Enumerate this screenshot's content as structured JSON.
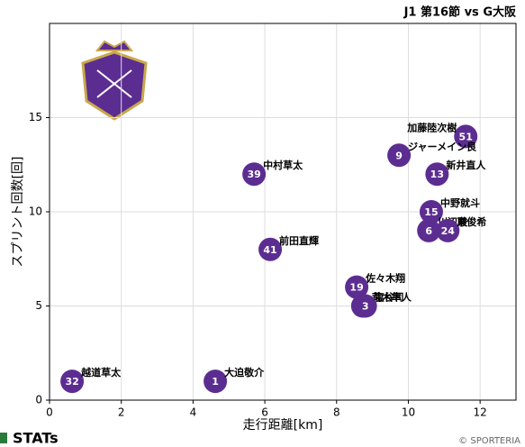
{
  "chart_data": {
    "type": "scatter",
    "title": "J1 第16節 vs G大阪",
    "xlabel": "走行距離[km]",
    "ylabel": "スプリント回数[回]",
    "x": [
      11.6,
      9.74,
      10.8,
      5.7,
      10.64,
      10.57,
      11.1,
      6.15,
      8.56,
      8.73,
      8.8,
      0.63,
      4.62
    ],
    "y": [
      14,
      13,
      12,
      12,
      10,
      9,
      9,
      8,
      6,
      5,
      5,
      1,
      1
    ],
    "numbers": [
      "51",
      "9",
      "13",
      "39",
      "15",
      "6",
      "24",
      "41",
      "19",
      "38",
      "3",
      "32",
      "1"
    ],
    "names": [
      "加藤陸次樹",
      "ジャーメイン良",
      "新井直人",
      "中村草太",
      "中野就斗",
      "川辺駿",
      "東俊希",
      "前田直輝",
      "佐々木翔",
      "荒木隼人",
      "塩谷司",
      "越道草太",
      "大迫敬介"
    ],
    "color": "#5c2d91",
    "xlim": [
      0,
      13
    ],
    "ylim": [
      0,
      20
    ],
    "xticks": [
      0,
      2,
      4,
      6,
      8,
      10,
      12
    ],
    "yticks": [
      0,
      5,
      10,
      15
    ],
    "grid": true
  },
  "footer": {
    "brand": "STATs",
    "copyright": "© SPORTERIA"
  }
}
